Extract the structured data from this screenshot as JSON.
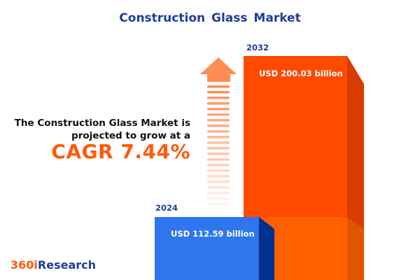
{
  "title": "Construction Glass Market",
  "lead_line1": "The Construction Glass Market is",
  "lead_line2": "projected to grow at a",
  "cagr_text": "CAGR 7.44%",
  "logo": {
    "part1": "360i",
    "part2": "Research"
  },
  "chart_data": {
    "type": "bar",
    "categories": [
      "2024",
      "2032"
    ],
    "values": [
      112.59,
      200.03
    ],
    "value_labels": [
      "USD 112.59 billion",
      "USD 200.03 billion"
    ],
    "unit": "USD billion",
    "cagr": 7.44,
    "colors": {
      "2024": "#2f76ec",
      "2032": "#ff4a00",
      "arrow": "#ff8c55",
      "title": "#1f3d99",
      "accent": "#ff5a0a"
    }
  }
}
